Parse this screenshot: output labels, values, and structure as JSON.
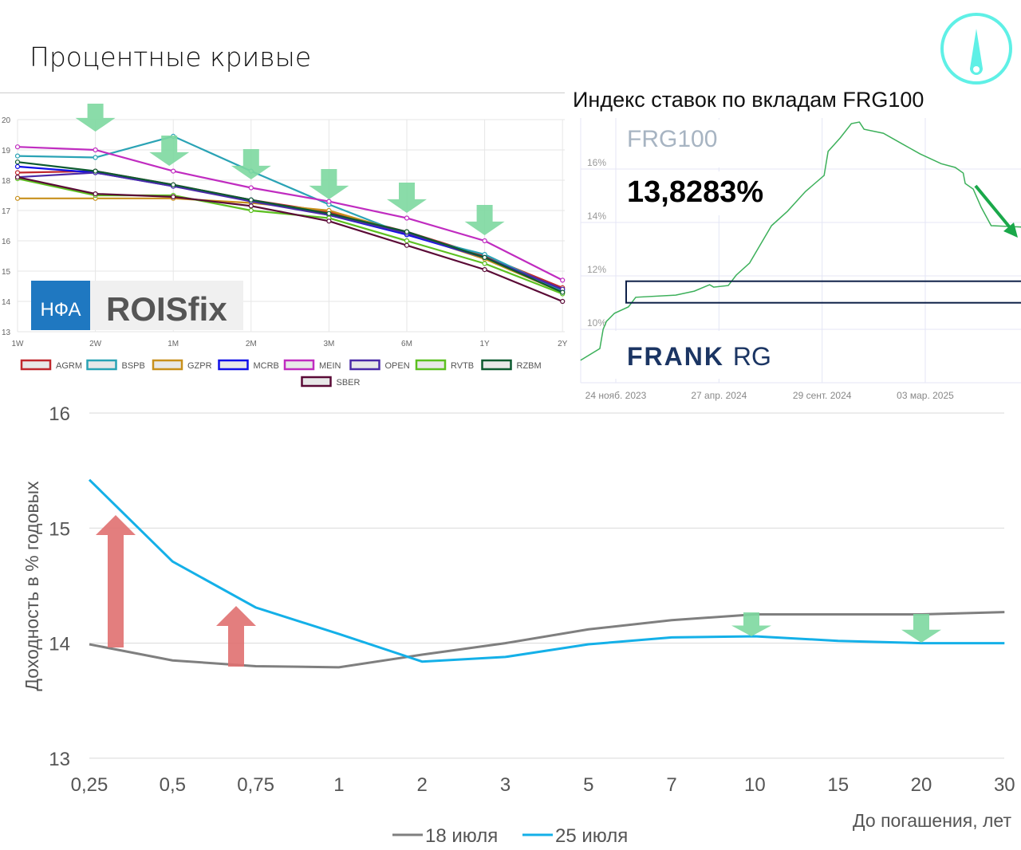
{
  "page": {
    "title": "Процентные кривые"
  },
  "logo": {
    "icon": "gauge-needle-icon",
    "color": "#5ff0e6"
  },
  "chart_data": [
    {
      "type": "line",
      "title": "",
      "categories": [
        "1W",
        "2W",
        "1M",
        "2M",
        "3M",
        "6M",
        "1Y",
        "2Y"
      ],
      "ylim": [
        13,
        20
      ],
      "yticks": [
        13,
        14,
        15,
        16,
        17,
        18,
        19,
        20
      ],
      "grid": true,
      "legend": "bottom",
      "watermark": {
        "left": "НФА",
        "right": "ROISfix"
      },
      "annotations": {
        "down_arrows_at": [
          "2W",
          "1M",
          "2M",
          "3M",
          "6M",
          "1Y"
        ],
        "arrow_color": "#7dd8a0"
      },
      "series": [
        {
          "name": "AGRM",
          "color": "#c0282d",
          "values": [
            18.25,
            18.3,
            17.85,
            17.35,
            16.95,
            16.3,
            15.5,
            14.45
          ]
        },
        {
          "name": "BSPB",
          "color": "#2aa3b5",
          "values": [
            18.8,
            18.75,
            19.45,
            18.3,
            17.2,
            16.2,
            15.55,
            14.35
          ]
        },
        {
          "name": "GZPR",
          "color": "#c8901c",
          "values": [
            17.4,
            17.4,
            17.4,
            17.25,
            17.0,
            16.25,
            15.4,
            14.3
          ]
        },
        {
          "name": "MCRB",
          "color": "#1010e8",
          "values": [
            18.45,
            18.25,
            17.8,
            17.35,
            16.85,
            16.2,
            15.45,
            14.4
          ]
        },
        {
          "name": "MEIN",
          "color": "#c02cc0",
          "values": [
            19.1,
            19.0,
            18.3,
            17.75,
            17.3,
            16.75,
            16.0,
            14.7
          ]
        },
        {
          "name": "OPEN",
          "color": "#4a2aa8",
          "values": [
            18.1,
            18.25,
            17.8,
            17.3,
            16.85,
            16.25,
            15.45,
            14.4
          ]
        },
        {
          "name": "RVTB",
          "color": "#5cc020",
          "values": [
            18.05,
            17.5,
            17.5,
            17.0,
            16.75,
            16.0,
            15.25,
            14.25
          ]
        },
        {
          "name": "RZBM",
          "color": "#0c5a30",
          "values": [
            18.6,
            18.3,
            17.85,
            17.35,
            16.9,
            16.3,
            15.45,
            14.3
          ]
        },
        {
          "name": "SBER",
          "color": "#5a0a36",
          "values": [
            18.1,
            17.55,
            17.45,
            17.15,
            16.65,
            15.85,
            15.05,
            14.0
          ]
        }
      ]
    },
    {
      "type": "line",
      "title": "Индекс ставок по вкладам FRG100",
      "index_name": "FRG100",
      "current_value": "13,8283%",
      "brand": {
        "bold": "FRANK",
        "light": "RG"
      },
      "yticks": [
        "10%",
        "12%",
        "14%",
        "16%"
      ],
      "ytick_values": [
        10,
        12,
        14,
        16
      ],
      "xticks": [
        {
          "label": "24 нояб. 2023",
          "date": "2023-11-24"
        },
        {
          "label": "27 апр. 2024",
          "date": "2024-04-27"
        },
        {
          "label": "29 сент. 2024",
          "date": "2024-09-29"
        },
        {
          "label": "03 мар. 2025",
          "date": "2025-03-03"
        }
      ],
      "color": "#3cb05a",
      "highlight_band": [
        11.0,
        11.8
      ],
      "series": [
        {
          "points": [
            [
              "2023-10-02",
              8.84
            ],
            [
              "2023-10-31",
              9.28
            ],
            [
              "2023-11-05",
              10.0
            ],
            [
              "2023-11-10",
              10.3
            ],
            [
              "2023-11-22",
              10.6
            ],
            [
              "2023-12-13",
              10.84
            ],
            [
              "2023-12-24",
              11.2
            ],
            [
              "2024-02-22",
              11.28
            ],
            [
              "2024-03-21",
              11.43
            ],
            [
              "2024-04-13",
              11.67
            ],
            [
              "2024-04-19",
              11.58
            ],
            [
              "2024-05-11",
              11.64
            ],
            [
              "2024-05-23",
              12.03
            ],
            [
              "2024-06-12",
              12.48
            ],
            [
              "2024-06-28",
              13.16
            ],
            [
              "2024-07-15",
              13.88
            ],
            [
              "2024-08-08",
              14.42
            ],
            [
              "2024-09-04",
              15.16
            ],
            [
              "2024-10-02",
              15.76
            ],
            [
              "2024-10-08",
              16.66
            ],
            [
              "2024-10-26",
              17.16
            ],
            [
              "2024-11-12",
              17.7
            ],
            [
              "2024-11-24",
              17.76
            ],
            [
              "2024-12-01",
              17.49
            ],
            [
              "2024-12-30",
              17.34
            ],
            [
              "2025-01-26",
              16.96
            ],
            [
              "2025-02-23",
              16.57
            ],
            [
              "2025-03-27",
              16.2
            ],
            [
              "2025-04-17",
              16.06
            ],
            [
              "2025-04-29",
              15.85
            ],
            [
              "2025-05-02",
              15.46
            ],
            [
              "2025-05-14",
              15.25
            ],
            [
              "2025-05-26",
              14.57
            ],
            [
              "2025-06-10",
              13.88
            ],
            [
              "2025-07-25",
              13.83
            ]
          ]
        }
      ]
    },
    {
      "type": "line",
      "title": "",
      "categories": [
        "0,25",
        "0,5",
        "0,75",
        "1",
        "2",
        "3",
        "5",
        "7",
        "10",
        "15",
        "20",
        "30"
      ],
      "ylim": [
        13,
        16
      ],
      "yticks": [
        "13",
        "14",
        "15",
        "16"
      ],
      "ytick_values": [
        13,
        14,
        15,
        16
      ],
      "ylabel": "Доходность в % годовых",
      "xlabel": "До погашения, лет",
      "grid": true,
      "legend": "bottom",
      "series": [
        {
          "name": "18 июля",
          "color": "#7f7f7f",
          "values": [
            13.99,
            13.85,
            13.8,
            13.79,
            13.9,
            14.0,
            14.12,
            14.2,
            14.25,
            14.25,
            14.25,
            14.27
          ]
        },
        {
          "name": "25 июля",
          "color": "#14b0e8",
          "values": [
            15.42,
            14.71,
            14.31,
            14.08,
            13.84,
            13.88,
            13.99,
            14.05,
            14.06,
            14.02,
            14.0,
            14.0
          ]
        }
      ],
      "annotations": {
        "up_arrows_at": [
          "0,25",
          "0,75"
        ],
        "up_arrow_color": "#e07070",
        "down_arrows_at": [
          "10",
          "20"
        ],
        "down_arrow_color": "#7dd8a0"
      }
    }
  ]
}
